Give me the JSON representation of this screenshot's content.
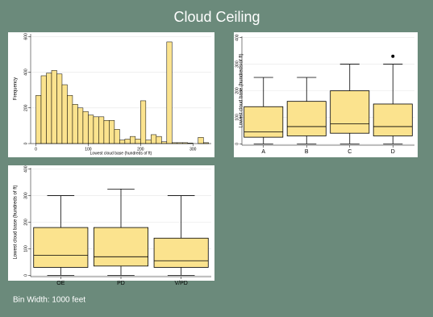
{
  "title": "Cloud Ceiling",
  "note": "Bin Width: 1000 feet",
  "chart_data": [
    {
      "type": "histogram",
      "xlabel": "Lowest cloud base (hundreds of ft)",
      "ylabel": "Frequency",
      "bins": [
        0,
        10,
        20,
        30,
        40,
        50,
        60,
        70,
        80,
        90,
        100,
        110,
        120,
        130,
        140,
        150,
        160,
        170,
        180,
        190,
        200,
        210,
        220,
        230,
        240,
        250,
        260,
        270,
        280,
        290,
        300,
        310,
        320,
        330
      ],
      "values": [
        270,
        380,
        395,
        410,
        390,
        330,
        270,
        220,
        200,
        180,
        160,
        150,
        150,
        130,
        130,
        80,
        20,
        25,
        40,
        25,
        240,
        20,
        50,
        40,
        10,
        570,
        5,
        5,
        5,
        3,
        0,
        35,
        5
      ],
      "color": "#fbe38e",
      "xlim": [
        -10,
        335
      ],
      "ylim": [
        0,
        615
      ],
      "xticks": [
        0,
        100,
        200,
        300
      ],
      "yticks": [
        0,
        200,
        400,
        600
      ],
      "grid": true
    },
    {
      "type": "box",
      "ylabel": "Lowest cloud base (hundreds of ft)",
      "categories": [
        "A",
        "B",
        "C",
        "D"
      ],
      "low": [
        0,
        0,
        0,
        0
      ],
      "q1": [
        25,
        30,
        40,
        30
      ],
      "median": [
        45,
        65,
        75,
        65
      ],
      "q3": [
        140,
        160,
        200,
        150
      ],
      "high": [
        250,
        250,
        300,
        300
      ],
      "outliers": [
        [],
        [],
        [],
        [
          330
        ]
      ],
      "color": "#fbe38e",
      "ylim": [
        -5,
        405
      ],
      "yticks": [
        0,
        100,
        200,
        300,
        400
      ],
      "grid": true
    },
    {
      "type": "box",
      "ylabel": "Lowest cloud base (hundreds of ft)",
      "categories": [
        "OE",
        "PD",
        "V/PD"
      ],
      "low": [
        0,
        0,
        0
      ],
      "q1": [
        30,
        35,
        30
      ],
      "median": [
        75,
        70,
        55
      ],
      "q3": [
        180,
        180,
        140
      ],
      "high": [
        300,
        325,
        300
      ],
      "outliers": [
        [],
        [],
        []
      ],
      "color": "#fbe38e",
      "ylim": [
        -5,
        405
      ],
      "yticks": [
        0,
        100,
        200,
        300,
        400
      ],
      "grid": true
    }
  ]
}
